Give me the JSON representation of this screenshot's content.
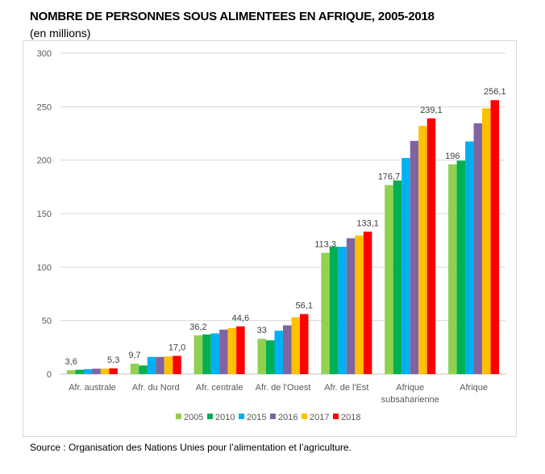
{
  "header": {
    "title": "NOMBRE DE PERSONNES SOUS ALIMENTEES EN AFRIQUE, 2005-2018",
    "subtitle": "(en millions)"
  },
  "footer": {
    "source": "Source : Organisation des Nations Unies pour l’alimentation et l’agriculture."
  },
  "chart_data": {
    "type": "bar",
    "ylim": [
      0,
      300
    ],
    "yticks": [
      0,
      50,
      100,
      150,
      200,
      250,
      300
    ],
    "grid": true,
    "legend_position": "bottom",
    "categories": [
      "Afr. australe",
      "Afr. du Nord",
      "Afr. centrale",
      "Afr. de l'Ouest",
      "Afr. de l'Est",
      "Afrique subsaharienne",
      "Afrique"
    ],
    "category_label_lines": [
      [
        "Afr. australe"
      ],
      [
        "Afr. du Nord"
      ],
      [
        "Afr. centrale"
      ],
      [
        "Afr. de l'Ouest"
      ],
      [
        "Afr. de l'Est"
      ],
      [
        "Afrique",
        "subsaharienne"
      ],
      [
        "Afrique"
      ]
    ],
    "series": [
      {
        "name": "2005",
        "color": "#92D050",
        "values": [
          3.6,
          9.7,
          36.2,
          33,
          113.3,
          176.7,
          196
        ]
      },
      {
        "name": "2010",
        "color": "#00B050",
        "values": [
          4.0,
          8.0,
          37.0,
          31.5,
          119.0,
          181.0,
          199.5
        ]
      },
      {
        "name": "2015",
        "color": "#00B0F0",
        "values": [
          4.6,
          16.0,
          38.0,
          40.5,
          119.0,
          202.0,
          217.5
        ]
      },
      {
        "name": "2016",
        "color": "#8064A2",
        "values": [
          5.0,
          16.0,
          41.5,
          45.5,
          127.0,
          218.0,
          234.5
        ]
      },
      {
        "name": "2017",
        "color": "#FFC000",
        "values": [
          5.0,
          16.5,
          43.0,
          53.0,
          129.5,
          232.0,
          248.5
        ]
      },
      {
        "name": "2018",
        "color": "#FF0000",
        "values": [
          5.3,
          17.0,
          44.6,
          56.1,
          133.1,
          239.1,
          256.1
        ]
      }
    ],
    "data_labels": [
      {
        "category": 0,
        "series": 0,
        "text": "3,6"
      },
      {
        "category": 0,
        "series": 5,
        "text": "5,3"
      },
      {
        "category": 1,
        "series": 0,
        "text": "9,7"
      },
      {
        "category": 1,
        "series": 5,
        "text": "17,0"
      },
      {
        "category": 2,
        "series": 0,
        "text": "36,2"
      },
      {
        "category": 2,
        "series": 5,
        "text": "44,6"
      },
      {
        "category": 3,
        "series": 0,
        "text": "33"
      },
      {
        "category": 3,
        "series": 5,
        "text": "56,1"
      },
      {
        "category": 4,
        "series": 0,
        "text": "113,3"
      },
      {
        "category": 4,
        "series": 5,
        "text": "133,1"
      },
      {
        "category": 5,
        "series": 0,
        "text": "176,7"
      },
      {
        "category": 5,
        "series": 5,
        "text": "239,1"
      },
      {
        "category": 6,
        "series": 0,
        "text": "196"
      },
      {
        "category": 6,
        "series": 5,
        "text": "256,1"
      }
    ]
  }
}
